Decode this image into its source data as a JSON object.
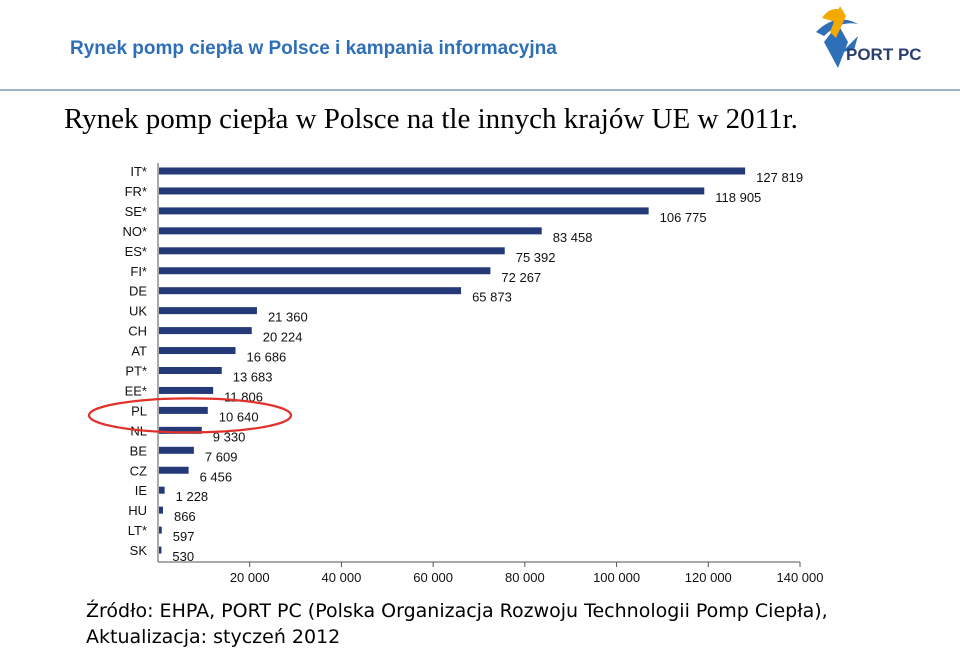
{
  "header": {
    "title": "Rynek pomp ciepła w Polsce i kampania informacyjna",
    "logo_text": "PORT PC",
    "title_color": "#2e6fb8"
  },
  "main_title": "Rynek pomp ciepła w Polsce na tle innych krajów UE w 2011r.",
  "source": {
    "line1": "Źródło: EHPA, PORT PC (Polska Organizacja Rozwoju Technologii Pomp Ciepła),",
    "line2": "Aktualizacja: styczeń 2012"
  },
  "highlight": {
    "category": "PL",
    "color": "#e0322b"
  },
  "chart_data": {
    "type": "bar",
    "orientation": "horizontal",
    "bar_color": "#243a78",
    "categories": [
      "IT*",
      "FR*",
      "SE*",
      "NO*",
      "ES*",
      "FI*",
      "DE",
      "UK",
      "CH",
      "AT",
      "PT*",
      "EE*",
      "PL",
      "NL",
      "BE",
      "CZ",
      "IE",
      "HU",
      "LT*",
      "SK"
    ],
    "values": [
      127819,
      118905,
      106775,
      83458,
      75392,
      72267,
      65873,
      21360,
      20224,
      16686,
      13683,
      11806,
      10640,
      9330,
      7609,
      6456,
      1228,
      866,
      597,
      530
    ],
    "value_labels": [
      "127 819",
      "118 905",
      "106 775",
      "83 458",
      "75 392",
      "72 267",
      "65 873",
      "21 360",
      "20 224",
      "16 686",
      "13 683",
      "11 806",
      "10 640",
      "9 330",
      "7 609",
      "6 456",
      "1 228",
      "866",
      "597",
      "530"
    ],
    "xlim": [
      0,
      140000
    ],
    "x_ticks": [
      20000,
      40000,
      60000,
      80000,
      100000,
      120000,
      140000
    ],
    "x_tick_labels": [
      "20 000",
      "40 000",
      "60 000",
      "80 000",
      "100 000",
      "120 000",
      "140 000"
    ],
    "grid": false
  }
}
